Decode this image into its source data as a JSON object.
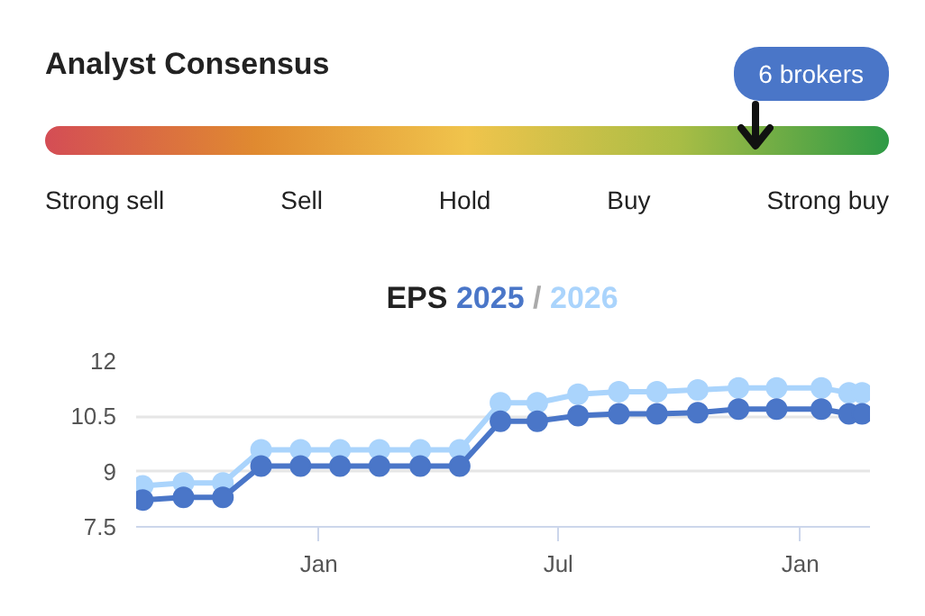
{
  "chart_data": [
    {
      "type": "other",
      "title": "Analyst Consensus",
      "categories": [
        "Strong sell",
        "Sell",
        "Hold",
        "Buy",
        "Strong buy"
      ],
      "colors": [
        "#d44d55",
        "#e08a30",
        "#f0c44c",
        "#a9bd45",
        "#2e9a45"
      ],
      "annotations": [
        "6 brokers"
      ]
    },
    {
      "type": "line",
      "title": "EPS",
      "annotations": [
        "/"
      ],
      "x": [
        "2023-08-20",
        "2023-09-20",
        "2023-10-20",
        "2023-11-18",
        "2023-12-18",
        "2024-01-17",
        "2024-02-16",
        "2024-03-18",
        "2024-04-17",
        "2024-05-18",
        "2024-06-15",
        "2024-07-16",
        "2024-08-16",
        "2024-09-14",
        "2024-10-15",
        "2024-11-15",
        "2024-12-14",
        "2025-01-17",
        "2025-02-07",
        "2025-02-17"
      ],
      "series": [
        {
          "name": "2025",
          "color": "#4a76c8",
          "values": [
            8.23,
            8.3,
            8.3,
            9.15,
            9.15,
            9.15,
            9.15,
            9.15,
            9.15,
            10.37,
            10.37,
            10.52,
            10.57,
            10.57,
            10.6,
            10.7,
            10.7,
            10.7,
            10.57,
            10.57
          ]
        },
        {
          "name": "2026",
          "color": "#aad4fc",
          "values": [
            8.61,
            8.69,
            8.69,
            9.59,
            9.59,
            9.59,
            9.59,
            9.59,
            9.59,
            10.87,
            10.87,
            11.1,
            11.17,
            11.17,
            11.22,
            11.27,
            11.27,
            11.27,
            11.14,
            11.14
          ]
        }
      ],
      "xlim": [
        "2023-08-15",
        "2025-02-23"
      ],
      "xticks": [
        {
          "value": "2024-01-01",
          "label": "Jan"
        },
        {
          "value": "2024-07-01",
          "label": "Jul"
        },
        {
          "value": "2025-01-01",
          "label": "Jan"
        }
      ],
      "ylim": [
        7.5,
        12
      ],
      "yticks": [
        7.5,
        9,
        10.5,
        12
      ],
      "grid": "y",
      "marker": "circle",
      "line_style": "solid",
      "legend": "top"
    }
  ]
}
